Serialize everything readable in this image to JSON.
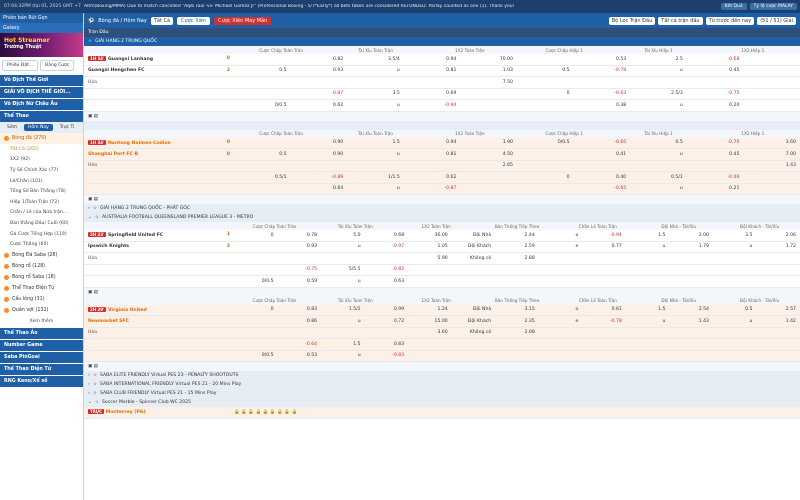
{
  "topbar": {
    "clock": "07:04:32PM (tại 01, 2025 GMT +7",
    "marquee": "Altm(Boxing/MMA) Due to match cancelled \"Aqib Faiz -vs- Michael Gomez Jr\" (Professional Boxing - 5/7*Early*) all bets taken are considered REFUNDED. Parlay counted as one (1). Thank you!",
    "btn1": "Kết Quả",
    "btn2": "Tỷ lệ cược MALAY"
  },
  "sidebar": {
    "item1": "Phiên bản Rút Gọn",
    "item2": "Galaxy",
    "banner": "Hot Streamer",
    "banner_sub": "Trường Thuật",
    "tabs": [
      "Phiếu Đặt...",
      "Bảng Cược"
    ],
    "heads": [
      "Vô Địch Thế Giới",
      "GIẢI VÔ ĐỊCH THẾ GIỚI...",
      "Vô Địch Nữ Châu Âu",
      "Thể Thao"
    ],
    "subtabs": [
      "Sớm",
      "Hôm Nay",
      "Trực Ti"
    ],
    "sports": [
      "Bóng đá (270)"
    ],
    "subs": [
      "Tất Cả (202)",
      "1X2 (92)",
      "Tỷ Số Chính Xác (77)",
      "Lẻ/Chẵn (101)",
      "Tổng Số Bàn Thắng (78)",
      "Hiệp 1/Toàn Trận (72)",
      "Chẵn / Lẻ của Nửa trận...",
      "Bàn thắng Đầu/ Cuối (60)",
      "Gá Cược Tổng Hợp (119)",
      "Cược Thắng (60)"
    ],
    "sports2": [
      "Bóng Đá Saba (28)",
      "Bóng rổ (128)",
      "Bóng rổ Saba (18)",
      "Thể Thao Điện Tử",
      "Cầu lông (31)",
      "Quần vợt (132)"
    ],
    "more": "Xem thêm",
    "bottom": [
      "Thể Thao Ảo",
      "Number Game",
      "Saba PinGoal",
      "Thể Thao Điện Tử",
      "RNG Keno/Xổ số"
    ]
  },
  "main": {
    "filter": {
      "sport": "Bóng đá / Hôm Nay",
      "all": "Tất Cả",
      "bet1": "Cược Xiên",
      "bet2": "Cược Xiên May Mắn",
      "f1": "Bộ Lọc Trận Đấu",
      "f2": "Tất cả trận đấu",
      "f3": "Từ trước đến nay",
      "f4": "(51 / 51) Giải"
    },
    "hdr": "Trận Đấu",
    "cols": [
      "Cược Chấp Toàn Trận",
      "Tài Xỉu Toàn Trận",
      "1X2 Toàn Trận",
      "Cược Chấp Hiệp 1",
      "Tài Xỉu Hiệp 1",
      "1X2 Hiệp 1"
    ],
    "league1": "GIẢI HẠNG 2 TRUNG QUỐC",
    "m1": {
      "time": "1H 34'",
      "home": "Guangxi Lanhang",
      "away": "Guangzi Hengchen FC",
      "draw": "Hòa",
      "hs": "0",
      "as": "2",
      "r1": [
        "",
        "0.82",
        "3.5/4",
        "0.94",
        "70.00",
        "",
        "0.53",
        "2.5",
        "-0.68",
        ""
      ],
      "r2": [
        "0.5",
        "0.93",
        "u",
        "0.81",
        "1.03",
        "0.5",
        "-0.78",
        "u",
        "0.45",
        ""
      ],
      "r3": [
        "",
        "",
        "",
        "",
        "7.50",
        "",
        "",
        "",
        "",
        ""
      ],
      "r4": [
        "",
        "-0.87",
        "3.5",
        "0.69",
        "",
        "0",
        "-0.63",
        "2.5/3",
        "-0.75",
        ""
      ],
      "r5": [
        "0/0.5",
        "0.62",
        "u",
        "-0.94",
        "",
        "",
        "0.38",
        "u",
        "0.20",
        ""
      ]
    },
    "m2": {
      "time": "1H 34'",
      "home": "Nantong Haimen Codion",
      "away": "Shanghai Port FC B",
      "draw": "Hòa",
      "hs": "0",
      "as": "0",
      "r1": [
        "",
        "0.90",
        "1.5",
        "0.94",
        "1.90",
        "0/0.5",
        "-0.66",
        "0.5",
        "-0.70",
        "3.60"
      ],
      "r2": [
        "0.5",
        "0.90",
        "u",
        "0.81",
        "4.50",
        "",
        "0.41",
        "u",
        "0.45",
        "7.00"
      ],
      "r3": [
        "",
        "",
        "",
        "",
        "2.65",
        "",
        "",
        "",
        "",
        "1.43"
      ],
      "r4": [
        "0.5/1",
        "-0.89",
        "1/1.5",
        "0.62",
        "",
        "0",
        "0.40",
        "0.5/1",
        "-0.46",
        ""
      ],
      "r5": [
        "",
        "0.64",
        "u",
        "-0.87",
        "",
        "",
        "-0.65",
        "u",
        "0.21",
        ""
      ]
    },
    "league2": "GIẢI HẠNG 2 TRUNG QUỐC - PHÁT GÓC",
    "league3": "AUSTRALIA FOOTBALL QUEENSLAND PREMIER LEAGUE 3 - METRO",
    "cols2": [
      "Cược Chấp Toàn Trận",
      "Tài Xỉu Toàn Trận",
      "1X2 Toàn Trận",
      "Bàn Thắng Tiếp Theo",
      "Chẵn Lẻ Toàn Trận",
      "Đội Nhà - Tài/Xỉu",
      "Đội Khách - Tài/Xỉu"
    ],
    "m3": {
      "time": "2H 23'",
      "home": "Springfield United FC",
      "away": "Ipswich Knights",
      "draw": "Hòa",
      "hs": "1",
      "as": "3",
      "r1": [
        "0",
        "0.78",
        "5.0",
        "0.68",
        "36.00",
        "Đội Nhà",
        "2.44",
        "o",
        "-0.94",
        "1.5",
        "2.00",
        "3.5",
        "2.06"
      ],
      "r2": [
        "",
        "0.93",
        "u",
        "-0.97",
        "1.05",
        "Đội Khách",
        "2.59",
        "e",
        "0.77",
        "u",
        "1.79",
        "u",
        "1.72"
      ],
      "r3": [
        "",
        "",
        "",
        "",
        "5.90",
        "Không có",
        "2.88",
        "",
        "",
        "",
        "",
        "",
        ""
      ],
      "r4": [
        "",
        "-0.75",
        "5/5.5",
        "-0.82",
        "",
        "",
        "",
        "",
        "",
        "",
        "",
        "",
        ""
      ],
      "r5": [
        "0/0.5",
        "0.59",
        "u",
        "0.63",
        "",
        "",
        "",
        "",
        "",
        "",
        "",
        "",
        ""
      ]
    },
    "m4": {
      "time": "2H 29'",
      "home": "Virginia United",
      "away": "Newmarket SFC",
      "draw": "Hòa",
      "hs": "",
      "as": "",
      "r1": [
        "0",
        "0.83",
        "1.5/2",
        "0.99",
        "1.24",
        "Đội Nhà",
        "3.15",
        "o",
        "0.61",
        "1.5",
        "2.54",
        "0.5",
        "2.57"
      ],
      "r2": [
        "",
        "0.86",
        "u",
        "0.72",
        "15.00",
        "Đội Khách",
        "2.35",
        "e",
        "-0.78",
        "u",
        "1.43",
        "u",
        "1.42"
      ],
      "r3": [
        "",
        "",
        "",
        "",
        "3.60",
        "Không có",
        "2.08",
        "",
        "",
        "",
        "",
        "",
        ""
      ],
      "r4": [
        "",
        "-0.64",
        "1.5",
        "0.83",
        "",
        "",
        "",
        "",
        "",
        "",
        "",
        "",
        ""
      ],
      "r5": [
        "0/0.5",
        "0.53",
        "u",
        "-0.83",
        "",
        "",
        "",
        "",
        "",
        "",
        "",
        "",
        ""
      ]
    },
    "leagues": [
      "SABA ELITE FRIENDLY Virtual PES 23 - PENALTY SHOOTOUTS",
      "SABA INTERNATIONAL FRIENDLY Virtual PES 21 - 20 Mins Play",
      "SABA CLUB FRIENDLY Virtual PES 21 - 15 Mins Play",
      "Soccer Marble - Spinner Club WC 2025"
    ],
    "last": {
      "time": "TRỰC",
      "team": "Monterrey (PG)"
    }
  }
}
